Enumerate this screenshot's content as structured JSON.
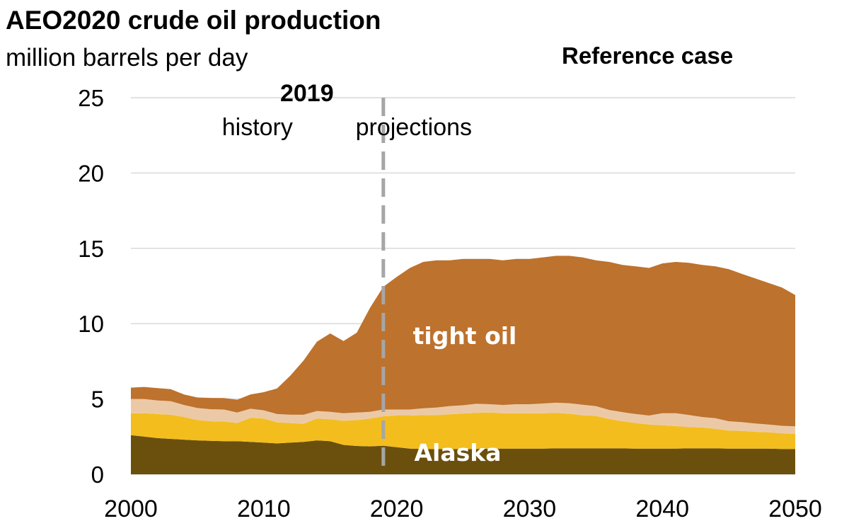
{
  "title": "AEO2020 crude oil production",
  "subtitle": "million barrels per day",
  "case_label": "Reference case",
  "annotations": {
    "divider_year_label": "2019",
    "history_label": "history",
    "projections_label": "projections"
  },
  "colors": {
    "tight_oil": "#bd722d",
    "band_light": "#ecc9a6",
    "band_yellow": "#f3bd1d",
    "alaska": "#6b500d",
    "gridline": "#d9d9d9",
    "divider": "#a6a6a6"
  },
  "chart_data": {
    "type": "area",
    "stacked": true,
    "title": "AEO2020 crude oil production",
    "ylabel": "million barrels per day",
    "xlim": [
      2000,
      2050
    ],
    "ylim": [
      0,
      25
    ],
    "y_ticks": [
      0,
      5,
      10,
      15,
      20,
      25
    ],
    "x_ticks": [
      2000,
      2010,
      2020,
      2030,
      2040,
      2050
    ],
    "grid": true,
    "divider_x": 2019,
    "x": [
      2000,
      2001,
      2002,
      2003,
      2004,
      2005,
      2006,
      2007,
      2008,
      2009,
      2010,
      2011,
      2012,
      2013,
      2014,
      2015,
      2016,
      2017,
      2018,
      2019,
      2020,
      2021,
      2022,
      2023,
      2024,
      2025,
      2026,
      2027,
      2028,
      2029,
      2030,
      2031,
      2032,
      2033,
      2034,
      2035,
      2036,
      2037,
      2038,
      2039,
      2040,
      2041,
      2042,
      2043,
      2044,
      2045,
      2046,
      2047,
      2048,
      2049,
      2050
    ],
    "series": [
      {
        "name": "Alaska",
        "label": "Alaska",
        "values": [
          2.6,
          2.5,
          2.4,
          2.35,
          2.3,
          2.25,
          2.22,
          2.2,
          2.2,
          2.15,
          2.1,
          2.05,
          2.1,
          2.15,
          2.25,
          2.2,
          1.95,
          1.88,
          1.85,
          1.9,
          1.8,
          1.7,
          1.68,
          1.68,
          1.68,
          1.68,
          1.68,
          1.7,
          1.7,
          1.7,
          1.7,
          1.7,
          1.72,
          1.72,
          1.72,
          1.72,
          1.72,
          1.72,
          1.7,
          1.7,
          1.7,
          1.7,
          1.72,
          1.72,
          1.72,
          1.7,
          1.7,
          1.7,
          1.7,
          1.68,
          1.68
        ]
      },
      {
        "values": [
          1.45,
          1.55,
          1.6,
          1.6,
          1.5,
          1.35,
          1.3,
          1.3,
          1.2,
          1.6,
          1.6,
          1.4,
          1.3,
          1.2,
          1.45,
          1.45,
          1.6,
          1.72,
          1.85,
          1.95,
          2.1,
          2.2,
          2.25,
          2.25,
          2.3,
          2.35,
          2.4,
          2.4,
          2.35,
          2.35,
          2.35,
          2.35,
          2.35,
          2.3,
          2.2,
          2.15,
          1.95,
          1.8,
          1.7,
          1.6,
          1.55,
          1.5,
          1.42,
          1.38,
          1.3,
          1.2,
          1.18,
          1.12,
          1.08,
          1.04,
          1.0
        ]
      },
      {
        "values": [
          0.95,
          0.95,
          0.9,
          0.9,
          0.8,
          0.8,
          0.8,
          0.8,
          0.7,
          0.6,
          0.55,
          0.55,
          0.55,
          0.6,
          0.5,
          0.5,
          0.5,
          0.5,
          0.45,
          0.45,
          0.4,
          0.4,
          0.45,
          0.5,
          0.55,
          0.55,
          0.6,
          0.55,
          0.55,
          0.6,
          0.6,
          0.65,
          0.68,
          0.7,
          0.7,
          0.65,
          0.6,
          0.6,
          0.6,
          0.6,
          0.8,
          0.85,
          0.8,
          0.7,
          0.7,
          0.62,
          0.58,
          0.55,
          0.52,
          0.5,
          0.5
        ]
      },
      {
        "name": "tight oil",
        "label": "tight oil",
        "values": [
          0.75,
          0.8,
          0.82,
          0.8,
          0.7,
          0.7,
          0.75,
          0.76,
          0.85,
          0.95,
          1.2,
          1.7,
          2.6,
          3.6,
          4.6,
          5.2,
          4.8,
          5.3,
          6.9,
          8.15,
          8.8,
          9.4,
          9.72,
          9.77,
          9.67,
          9.72,
          9.62,
          9.65,
          9.6,
          9.65,
          9.65,
          9.7,
          9.75,
          9.78,
          9.78,
          9.68,
          9.83,
          9.78,
          9.8,
          9.8,
          9.95,
          10.05,
          10.1,
          10.1,
          10.08,
          10.1,
          9.84,
          9.63,
          9.4,
          9.18,
          8.72
        ]
      }
    ]
  }
}
